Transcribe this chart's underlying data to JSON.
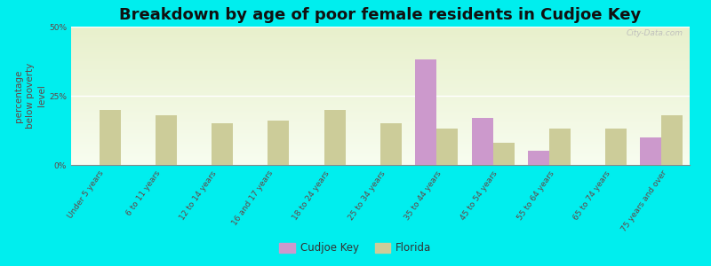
{
  "title": "Breakdown by age of poor female residents in Cudjoe Key",
  "categories": [
    "Under 5 years",
    "6 to 11 years",
    "12 to 14 years",
    "16 and 17 years",
    "18 to 24 years",
    "25 to 34 years",
    "35 to 44 years",
    "45 to 54 years",
    "55 to 64 years",
    "65 to 74 years",
    "75 years and over"
  ],
  "cudjoe_key": [
    0,
    0,
    0,
    0,
    0,
    0,
    38.0,
    17.0,
    5.0,
    0,
    10.0
  ],
  "florida": [
    20.0,
    18.0,
    15.0,
    16.0,
    20.0,
    15.0,
    13.0,
    8.0,
    13.0,
    13.0,
    18.0
  ],
  "cudjoe_color": "#cc99cc",
  "florida_color": "#cccc99",
  "background_color": "#00eeee",
  "plot_bg_top": "#e8f0cc",
  "plot_bg_bottom": "#f8fdf0",
  "ylabel": "percentage\nbelow poverty\nlevel",
  "ylim": [
    0,
    50
  ],
  "yticks": [
    0,
    25,
    50
  ],
  "ytick_labels": [
    "0%",
    "25%",
    "50%"
  ],
  "bar_width": 0.38,
  "title_fontsize": 13,
  "axis_label_fontsize": 7.5,
  "tick_fontsize": 6.5,
  "legend_fontsize": 8.5,
  "watermark": "City-Data.com"
}
